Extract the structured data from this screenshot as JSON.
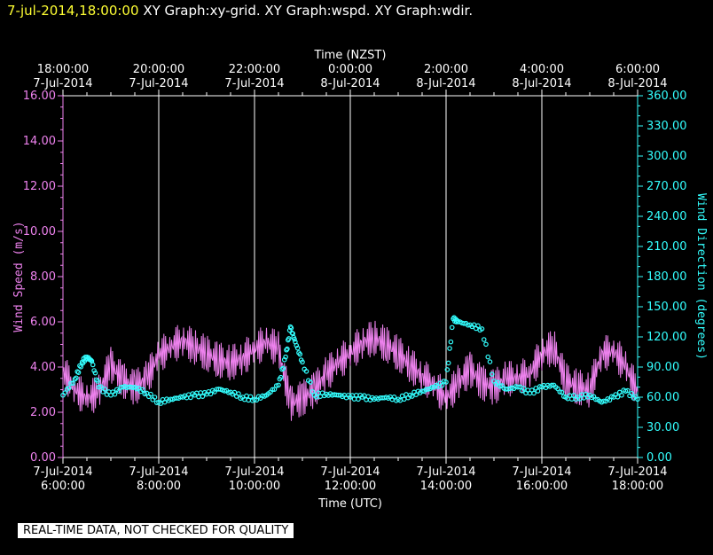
{
  "header": {
    "timestamp": "7-jul-2014,18:00:00",
    "graphs": "XY Graph:xy-grid.  XY Graph:wspd.  XY Graph:wdir."
  },
  "footer": {
    "quality_notice": "REAL-TIME DATA, NOT CHECKED FOR QUALITY"
  },
  "colors": {
    "speed": "#ee82ee",
    "direction": "#33ffff",
    "grid": "#ffffff",
    "background": "#000000",
    "timestamp": "#ffff33"
  },
  "chart_data": {
    "type": "line",
    "xlabel": "Time (UTC)",
    "xlabel_top": "Time (NZST)",
    "ylabel_left": "Wind Speed (m/s)",
    "ylabel_right": "Wind Direction (degrees)",
    "x_domain_hours_utc": [
      6,
      18
    ],
    "ylim_left": [
      0,
      16
    ],
    "ylim_right": [
      0,
      360
    ],
    "grid": "vertical",
    "bottom_ticks": [
      {
        "line1": "7-Jul-2014",
        "line2": "6:00:00"
      },
      {
        "line1": "7-Jul-2014",
        "line2": "8:00:00"
      },
      {
        "line1": "7-Jul-2014",
        "line2": "10:00:00"
      },
      {
        "line1": "7-Jul-2014",
        "line2": "12:00:00"
      },
      {
        "line1": "7-Jul-2014",
        "line2": "14:00:00"
      },
      {
        "line1": "7-Jul-2014",
        "line2": "16:00:00"
      },
      {
        "line1": "7-Jul-2014",
        "line2": "18:00:00"
      }
    ],
    "top_ticks": [
      {
        "line1": "18:00:00",
        "line2": "7-Jul-2014"
      },
      {
        "line1": "20:00:00",
        "line2": "7-Jul-2014"
      },
      {
        "line1": "22:00:00",
        "line2": "7-Jul-2014"
      },
      {
        "line1": "0:00:00",
        "line2": "8-Jul-2014"
      },
      {
        "line1": "2:00:00",
        "line2": "8-Jul-2014"
      },
      {
        "line1": "4:00:00",
        "line2": "8-Jul-2014"
      },
      {
        "line1": "6:00:00",
        "line2": "8-Jul-2014"
      }
    ],
    "left_ticks": [
      "0.00",
      "2.00",
      "4.00",
      "6.00",
      "8.00",
      "10.00",
      "12.00",
      "14.00",
      "16.00"
    ],
    "right_ticks": [
      "0.00",
      "30.00",
      "60.00",
      "90.00",
      "120.00",
      "150.00",
      "180.00",
      "210.00",
      "240.00",
      "270.00",
      "300.00",
      "330.00",
      "360.00"
    ],
    "series": [
      {
        "name": "Wind Speed",
        "axis": "left",
        "style": "line",
        "x_hours_utc": [
          6.0,
          6.25,
          6.5,
          6.75,
          7.0,
          7.25,
          7.5,
          7.75,
          8.0,
          8.25,
          8.5,
          8.75,
          9.0,
          9.25,
          9.5,
          9.75,
          10.0,
          10.25,
          10.5,
          10.75,
          11.0,
          11.25,
          11.5,
          11.75,
          12.0,
          12.25,
          12.5,
          12.75,
          13.0,
          13.25,
          13.5,
          13.75,
          14.0,
          14.25,
          14.5,
          14.75,
          15.0,
          15.25,
          15.5,
          15.75,
          16.0,
          16.25,
          16.5,
          16.75,
          17.0,
          17.25,
          17.5,
          17.75,
          18.0
        ],
        "values": [
          3.8,
          3.0,
          2.6,
          2.9,
          4.1,
          3.4,
          3.1,
          3.5,
          4.5,
          4.9,
          5.2,
          4.9,
          4.6,
          4.3,
          4.2,
          4.4,
          4.8,
          5.1,
          4.8,
          2.4,
          2.6,
          3.0,
          3.7,
          4.2,
          4.6,
          5.1,
          5.3,
          5.0,
          4.6,
          4.1,
          3.6,
          3.2,
          2.6,
          3.3,
          3.9,
          3.3,
          3.1,
          3.5,
          3.5,
          3.7,
          4.6,
          4.9,
          3.4,
          3.1,
          3.0,
          4.6,
          4.7,
          4.0,
          2.9
        ]
      },
      {
        "name": "Wind Direction",
        "axis": "right",
        "style": "circles",
        "x_hours_utc": [
          6.0,
          6.25,
          6.4,
          6.5,
          6.6,
          6.75,
          7.0,
          7.25,
          7.5,
          7.75,
          8.0,
          8.25,
          8.5,
          8.75,
          9.0,
          9.25,
          9.5,
          9.75,
          10.0,
          10.25,
          10.5,
          10.65,
          10.75,
          10.85,
          11.0,
          11.25,
          11.5,
          11.75,
          12.0,
          12.25,
          12.5,
          12.75,
          13.0,
          13.25,
          13.5,
          13.75,
          14.0,
          14.15,
          14.25,
          14.5,
          14.75,
          15.0,
          15.25,
          15.5,
          15.75,
          16.0,
          16.25,
          16.5,
          16.75,
          17.0,
          17.25,
          17.5,
          17.75,
          18.0
        ],
        "values": [
          62,
          78,
          95,
          100,
          96,
          70,
          62,
          70,
          70,
          64,
          55,
          58,
          60,
          62,
          63,
          68,
          65,
          60,
          58,
          62,
          72,
          100,
          130,
          115,
          95,
          62,
          63,
          62,
          60,
          60,
          58,
          60,
          58,
          62,
          66,
          70,
          75,
          138,
          135,
          132,
          128,
          76,
          68,
          70,
          64,
          70,
          72,
          60,
          60,
          62,
          55,
          60,
          66,
          58
        ]
      }
    ]
  }
}
